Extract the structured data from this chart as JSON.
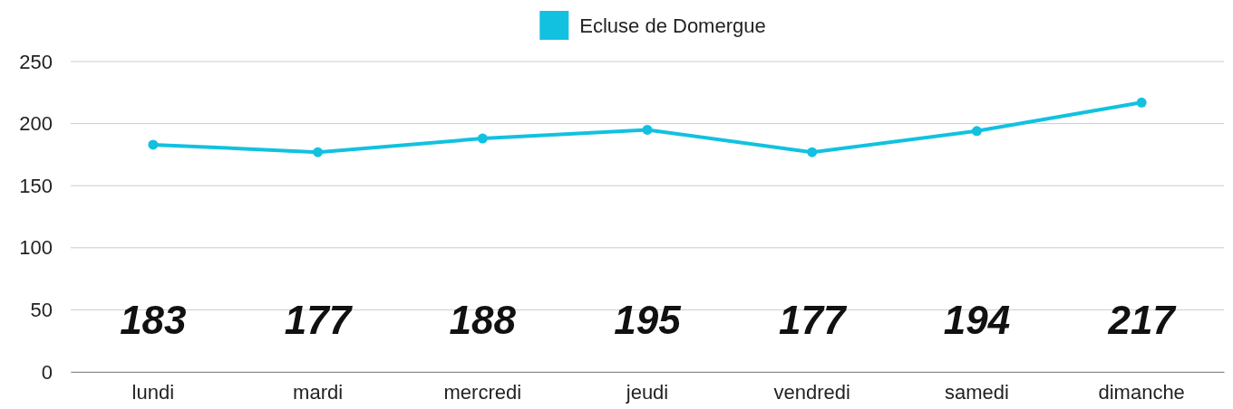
{
  "chart_data": {
    "type": "line",
    "categories": [
      "lundi",
      "mardi",
      "mercredi",
      "jeudi",
      "vendredi",
      "samedi",
      "dimanche"
    ],
    "series": [
      {
        "name": "Ecluse de Domergue",
        "color": "#12c1e0",
        "values": [
          183,
          177,
          188,
          195,
          177,
          194,
          217
        ]
      }
    ],
    "annotations": [
      "183",
      "177",
      "188",
      "195",
      "177",
      "194",
      "217"
    ],
    "ylim": [
      0,
      250
    ],
    "yticks": [
      0,
      50,
      100,
      150,
      200,
      250
    ],
    "grid": "y",
    "legend": "top",
    "marker": "circle",
    "line_style": "solid"
  }
}
